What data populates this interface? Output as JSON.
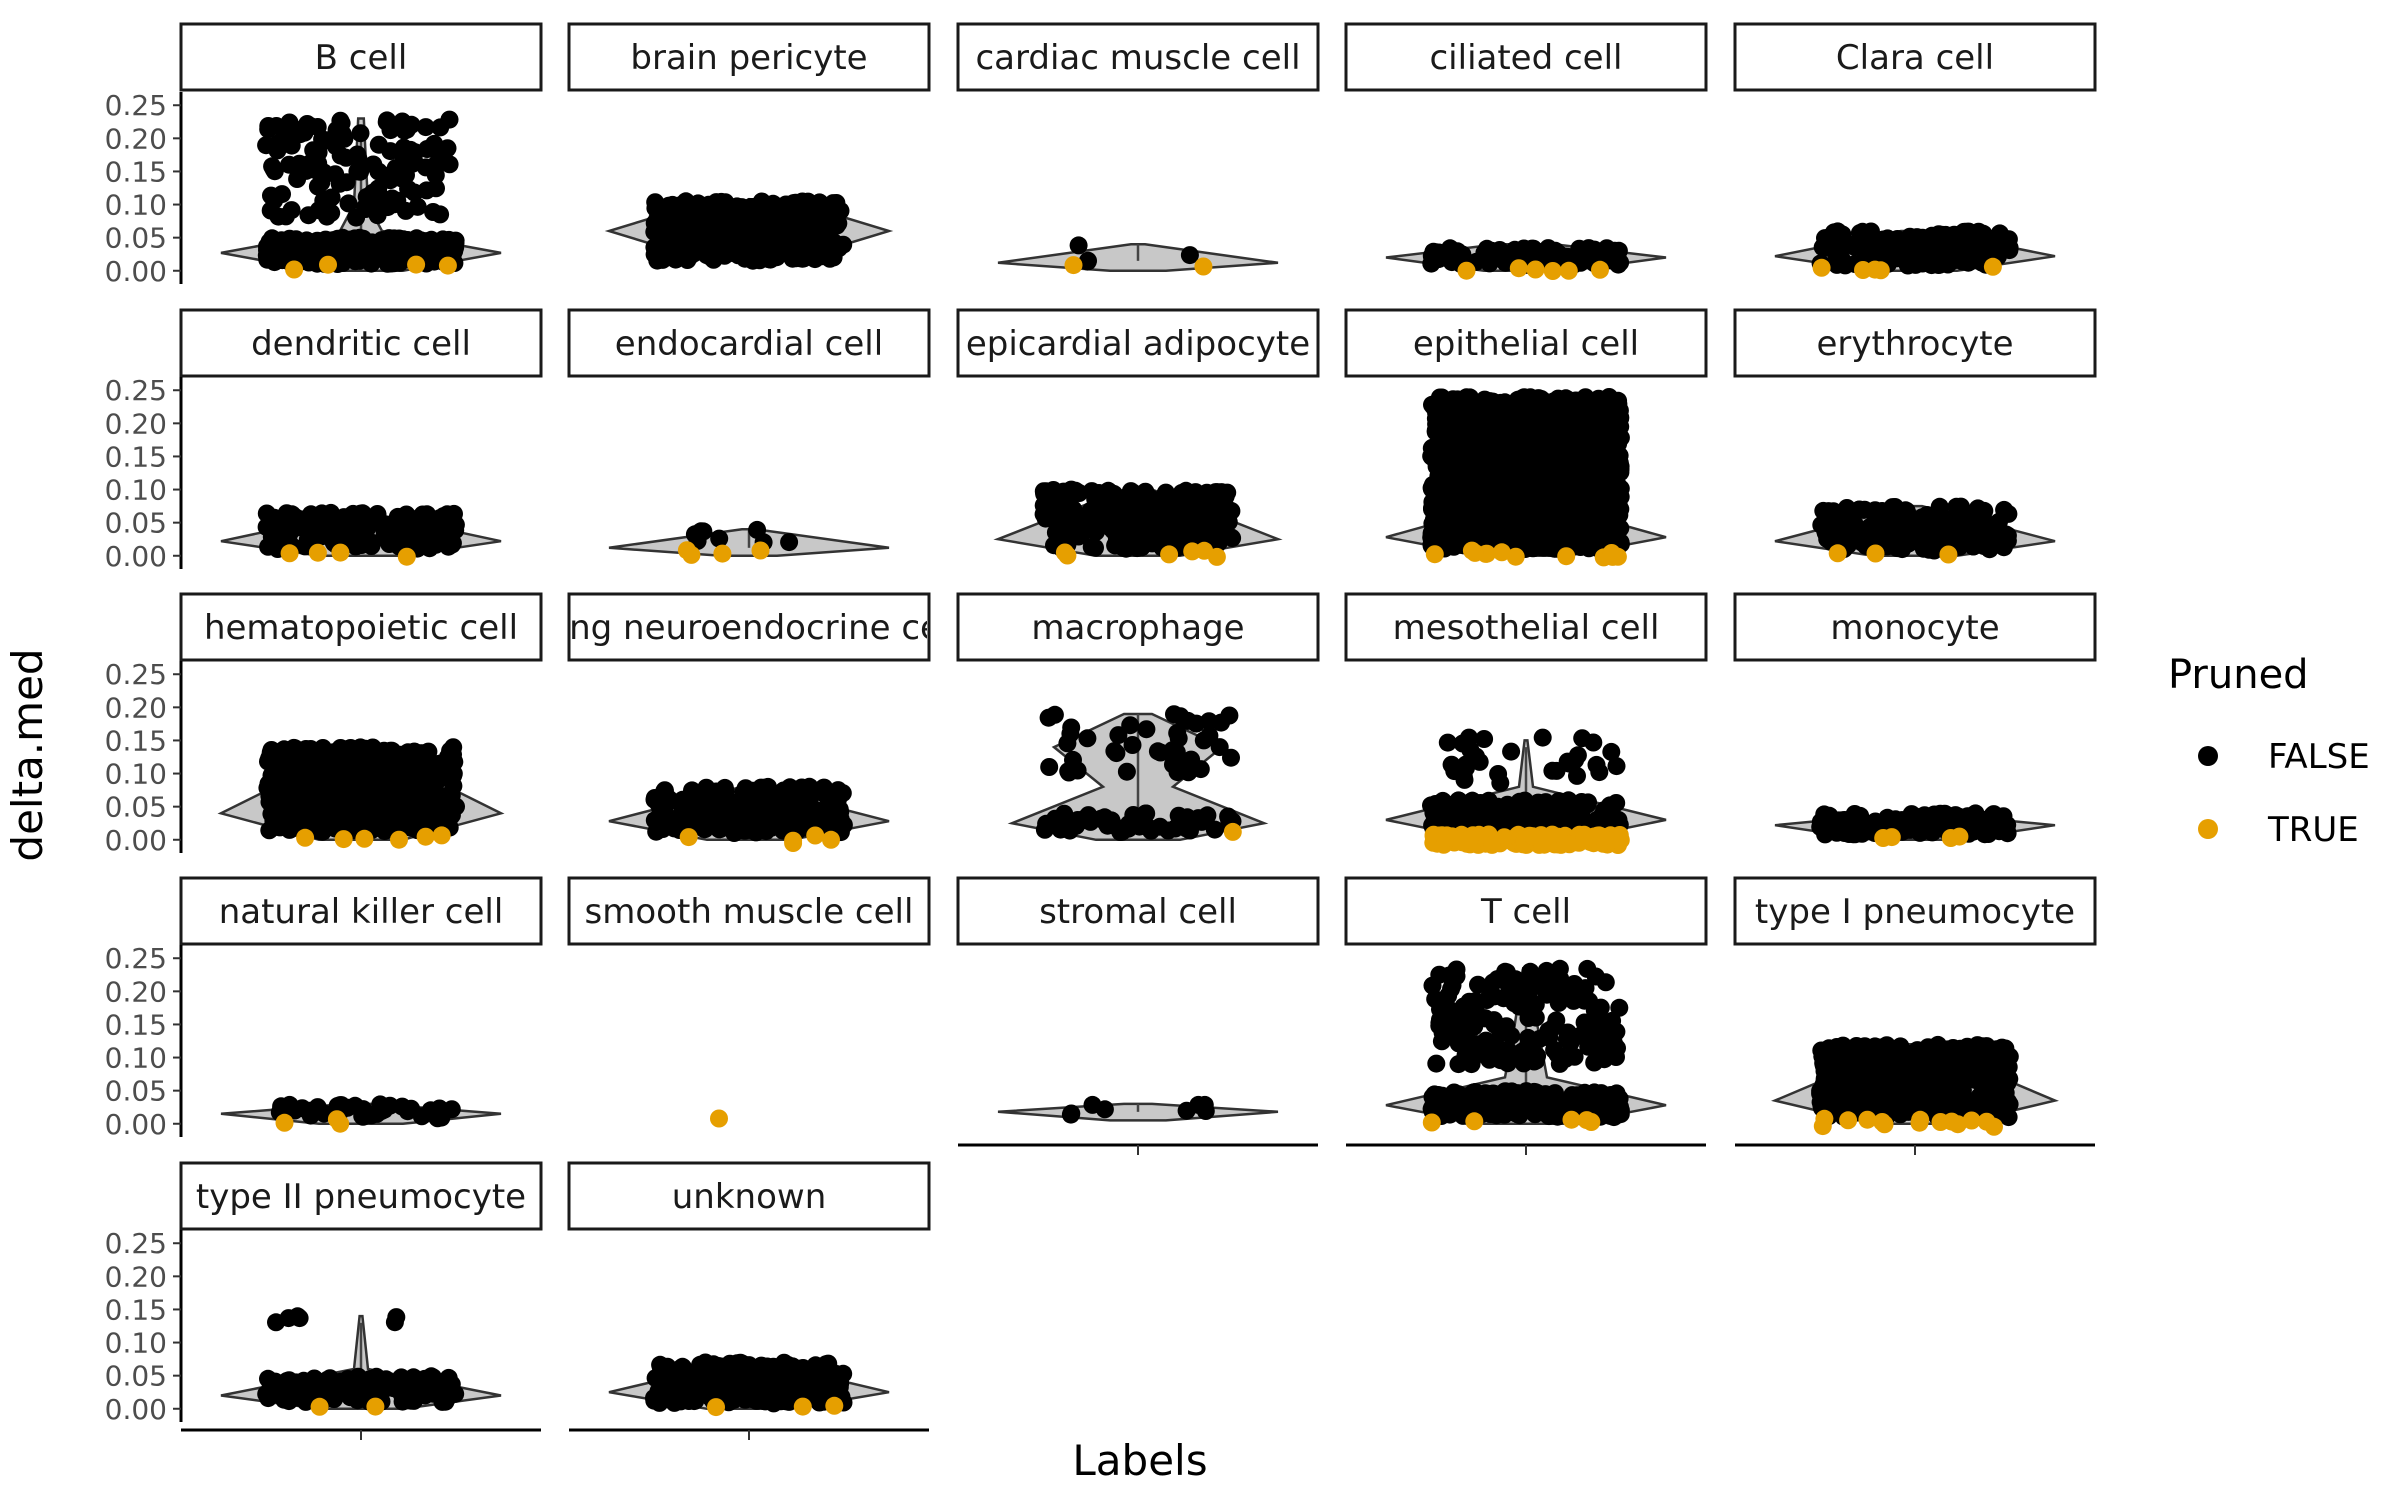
{
  "chart_data": {
    "type": "scatter",
    "subtype": "faceted violin + jitter",
    "xlabel": "Labels",
    "ylabel": "delta.med",
    "ylim": [
      -0.02,
      0.27
    ],
    "y_ticks": [
      "0.00",
      "0.05",
      "0.10",
      "0.15",
      "0.20",
      "0.25"
    ],
    "y_tick_values": [
      0,
      0.05,
      0.1,
      0.15,
      0.2,
      0.25
    ],
    "legend": {
      "title": "Pruned",
      "position": "right",
      "entries": [
        {
          "label": "FALSE",
          "color": "#000000"
        },
        {
          "label": "TRUE",
          "color": "#E69F00"
        }
      ]
    },
    "grid": false,
    "facets": [
      {
        "label": "B cell",
        "median": 0.027,
        "n": 420,
        "false_clusters": [
          [
            0.01,
            0.05,
            0.7
          ],
          [
            0.08,
            0.23,
            0.3
          ]
        ],
        "true_range": [
          0.0,
          0.01
        ],
        "true_n": 4,
        "violin": [
          [
            0.0,
            0.3
          ],
          [
            0.027,
            1.0
          ],
          [
            0.06,
            0.15
          ],
          [
            0.1,
            0.05
          ],
          [
            0.23,
            0.02
          ]
        ],
        "whisker_top": 0.2
      },
      {
        "label": "brain pericyte",
        "median": 0.06,
        "n": 360,
        "false_clusters": [
          [
            0.015,
            0.105,
            1.0
          ]
        ],
        "true_range": null,
        "true_n": 0,
        "violin": [
          [
            0.015,
            0.3
          ],
          [
            0.06,
            1.0
          ],
          [
            0.105,
            0.3
          ]
        ],
        "whisker_top": 0.11
      },
      {
        "label": "cardiac muscle cell",
        "median": 0.015,
        "n": 4,
        "false_clusters": [
          [
            0.01,
            0.04,
            1.0
          ]
        ],
        "true_range": [
          0.005,
          0.01
        ],
        "true_n": 2,
        "violin": [
          [
            0.0,
            0.2
          ],
          [
            0.012,
            1.0
          ],
          [
            0.04,
            0.05
          ]
        ],
        "whisker_top": 0.04
      },
      {
        "label": "ciliated cell",
        "median": 0.02,
        "n": 90,
        "false_clusters": [
          [
            0.008,
            0.035,
            1.0
          ]
        ],
        "true_range": [
          -0.002,
          0.005
        ],
        "true_n": 6,
        "violin": [
          [
            0.0,
            0.3
          ],
          [
            0.02,
            1.0
          ],
          [
            0.04,
            0.2
          ]
        ],
        "whisker_top": 0.035
      },
      {
        "label": "Clara cell",
        "median": 0.022,
        "n": 180,
        "false_clusters": [
          [
            0.008,
            0.06,
            1.0
          ]
        ],
        "true_range": [
          0.0,
          0.008
        ],
        "true_n": 5,
        "violin": [
          [
            0.0,
            0.3
          ],
          [
            0.022,
            1.0
          ],
          [
            0.06,
            0.1
          ]
        ],
        "whisker_top": 0.06
      },
      {
        "label": "dendritic cell",
        "median": 0.022,
        "n": 160,
        "false_clusters": [
          [
            0.01,
            0.065,
            1.0
          ]
        ],
        "true_range": [
          -0.002,
          0.005
        ],
        "true_n": 4,
        "violin": [
          [
            0.0,
            0.3
          ],
          [
            0.022,
            1.0
          ],
          [
            0.065,
            0.05
          ]
        ],
        "whisker_top": 0.06
      },
      {
        "label": "endocardial cell",
        "median": 0.012,
        "n": 8,
        "false_clusters": [
          [
            0.008,
            0.04,
            1.0
          ]
        ],
        "true_range": [
          0.0,
          0.01
        ],
        "true_n": 4,
        "violin": [
          [
            0.0,
            0.2
          ],
          [
            0.012,
            1.0
          ],
          [
            0.04,
            0.05
          ]
        ],
        "whisker_top": 0.04
      },
      {
        "label": "epicardial adipocyte",
        "median": 0.025,
        "n": 260,
        "false_clusters": [
          [
            0.01,
            0.1,
            1.0
          ]
        ],
        "true_range": [
          -0.002,
          0.008
        ],
        "true_n": 6,
        "violin": [
          [
            0.0,
            0.3
          ],
          [
            0.025,
            1.0
          ],
          [
            0.1,
            0.1
          ]
        ],
        "whisker_top": 0.1
      },
      {
        "label": "epithelial cell",
        "median": 0.028,
        "n": 1600,
        "false_clusters": [
          [
            0.01,
            0.24,
            1.0
          ]
        ],
        "true_range": [
          -0.003,
          0.008
        ],
        "true_n": 12,
        "violin": [
          [
            0.0,
            0.3
          ],
          [
            0.028,
            1.0
          ],
          [
            0.08,
            0.12
          ],
          [
            0.24,
            0.03
          ]
        ],
        "whisker_top": 0.24
      },
      {
        "label": "erythrocyte",
        "median": 0.022,
        "n": 180,
        "false_clusters": [
          [
            0.008,
            0.075,
            1.0
          ]
        ],
        "true_range": [
          0.0,
          0.008
        ],
        "true_n": 3,
        "violin": [
          [
            0.0,
            0.3
          ],
          [
            0.022,
            1.0
          ],
          [
            0.075,
            0.05
          ]
        ],
        "whisker_top": 0.07
      },
      {
        "label": "hematopoietic cell",
        "median": 0.04,
        "n": 520,
        "false_clusters": [
          [
            0.012,
            0.14,
            1.0
          ]
        ],
        "true_range": [
          -0.002,
          0.008
        ],
        "true_n": 6,
        "violin": [
          [
            0.0,
            0.3
          ],
          [
            0.04,
            1.0
          ],
          [
            0.14,
            0.05
          ]
        ],
        "whisker_top": 0.14
      },
      {
        "label": "lung neuroendocrine cell",
        "median": 0.028,
        "n": 200,
        "false_clusters": [
          [
            0.01,
            0.08,
            1.0
          ]
        ],
        "true_range": [
          -0.005,
          0.008
        ],
        "true_n": 5,
        "violin": [
          [
            0.0,
            0.3
          ],
          [
            0.028,
            1.0
          ],
          [
            0.08,
            0.05
          ]
        ],
        "whisker_top": 0.075
      },
      {
        "label": "macrophage",
        "median": 0.03,
        "n": 90,
        "false_clusters": [
          [
            0.01,
            0.04,
            0.55
          ],
          [
            0.1,
            0.19,
            0.45
          ]
        ],
        "true_range": [
          0.008,
          0.012
        ],
        "true_n": 1,
        "violin": [
          [
            0.0,
            0.3
          ],
          [
            0.025,
            0.9
          ],
          [
            0.08,
            0.25
          ],
          [
            0.14,
            0.6
          ],
          [
            0.19,
            0.1
          ]
        ],
        "whisker_top": 0.19
      },
      {
        "label": "mesothelial cell",
        "median": 0.03,
        "n": 200,
        "false_clusters": [
          [
            0.01,
            0.06,
            0.85
          ],
          [
            0.08,
            0.155,
            0.15
          ]
        ],
        "true_range": [
          -0.008,
          0.008
        ],
        "true_n": 160,
        "violin": [
          [
            0.0,
            0.3
          ],
          [
            0.03,
            1.0
          ],
          [
            0.08,
            0.05
          ],
          [
            0.15,
            0.01
          ]
        ],
        "whisker_top": 0.14
      },
      {
        "label": "monocyte",
        "median": 0.022,
        "n": 160,
        "false_clusters": [
          [
            0.008,
            0.04,
            1.0
          ]
        ],
        "true_range": [
          0.0,
          0.008
        ],
        "true_n": 4,
        "violin": [
          [
            0.0,
            0.3
          ],
          [
            0.022,
            1.0
          ],
          [
            0.04,
            0.1
          ]
        ],
        "whisker_top": 0.04
      },
      {
        "label": "natural killer cell",
        "median": 0.015,
        "n": 40,
        "false_clusters": [
          [
            0.008,
            0.03,
            1.0
          ]
        ],
        "true_range": [
          0.0,
          0.008
        ],
        "true_n": 3,
        "violin": [
          [
            0.0,
            0.3
          ],
          [
            0.015,
            1.0
          ],
          [
            0.03,
            0.1
          ]
        ],
        "whisker_top": 0.03
      },
      {
        "label": "smooth muscle cell",
        "median": null,
        "n": 0,
        "false_clusters": [],
        "true_range": [
          0.008,
          0.008
        ],
        "true_n": 1,
        "violin": [],
        "whisker_top": null
      },
      {
        "label": "stromal cell",
        "median": 0.018,
        "n": 8,
        "false_clusters": [
          [
            0.012,
            0.03,
            1.0
          ]
        ],
        "true_range": null,
        "true_n": 0,
        "violin": [
          [
            0.005,
            0.2
          ],
          [
            0.018,
            1.0
          ],
          [
            0.03,
            0.1
          ]
        ],
        "whisker_top": 0.03
      },
      {
        "label": "T cell",
        "median": 0.028,
        "n": 420,
        "false_clusters": [
          [
            0.01,
            0.05,
            0.6
          ],
          [
            0.09,
            0.235,
            0.4
          ]
        ],
        "true_range": [
          -0.002,
          0.008
        ],
        "true_n": 5,
        "violin": [
          [
            0.0,
            0.3
          ],
          [
            0.028,
            1.0
          ],
          [
            0.07,
            0.15
          ],
          [
            0.15,
            0.08
          ],
          [
            0.235,
            0.02
          ]
        ],
        "whisker_top": 0.235
      },
      {
        "label": "type I pneumocyte",
        "median": 0.035,
        "n": 480,
        "false_clusters": [
          [
            0.01,
            0.12,
            1.0
          ]
        ],
        "true_range": [
          -0.005,
          0.008
        ],
        "true_n": 14,
        "violin": [
          [
            0.0,
            0.3
          ],
          [
            0.035,
            1.0
          ],
          [
            0.12,
            0.05
          ]
        ],
        "whisker_top": 0.12
      },
      {
        "label": "type II pneumocyte",
        "median": 0.02,
        "n": 120,
        "false_clusters": [
          [
            0.01,
            0.05,
            0.95
          ],
          [
            0.13,
            0.14,
            0.05
          ]
        ],
        "true_range": [
          0.0,
          0.008
        ],
        "true_n": 2,
        "violin": [
          [
            0.0,
            0.3
          ],
          [
            0.02,
            1.0
          ],
          [
            0.06,
            0.05
          ],
          [
            0.14,
            0.01
          ]
        ],
        "whisker_top": 0.13
      },
      {
        "label": "unknown",
        "median": 0.025,
        "n": 260,
        "false_clusters": [
          [
            0.008,
            0.07,
            1.0
          ]
        ],
        "true_range": [
          0.0,
          0.008
        ],
        "true_n": 3,
        "violin": [
          [
            0.0,
            0.3
          ],
          [
            0.025,
            1.0
          ],
          [
            0.07,
            0.1
          ]
        ],
        "whisker_top": 0.07
      }
    ]
  }
}
